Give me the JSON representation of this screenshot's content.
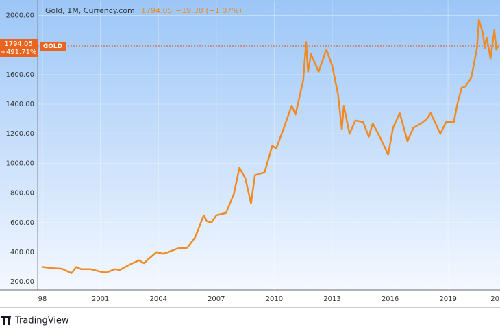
{
  "chart_data": {
    "type": "line",
    "title": "Gold, 1M, Currency.com",
    "last_price": 1794.05,
    "change": "−19.38 (−1.07%)",
    "total_change": "+491.71%",
    "brand": "TradingView",
    "x": [
      1998.0,
      1998.5,
      1999.0,
      1999.5,
      1999.75,
      2000.0,
      2000.5,
      2001.0,
      2001.3,
      2001.75,
      2002.0,
      2002.5,
      2003.0,
      2003.25,
      2003.5,
      2003.9,
      2004.25,
      2004.5,
      2005.0,
      2005.5,
      2005.9,
      2006.35,
      2006.5,
      2006.75,
      2007.0,
      2007.5,
      2007.9,
      2008.2,
      2008.5,
      2008.8,
      2009.0,
      2009.5,
      2009.9,
      2010.1,
      2010.5,
      2010.9,
      2011.1,
      2011.5,
      2011.65,
      2011.75,
      2011.9,
      2012.3,
      2012.7,
      2013.0,
      2013.3,
      2013.5,
      2013.6,
      2013.9,
      2014.2,
      2014.6,
      2014.9,
      2015.1,
      2015.5,
      2015.9,
      2016.15,
      2016.5,
      2016.9,
      2017.2,
      2017.6,
      2017.9,
      2018.1,
      2018.6,
      2018.9,
      2019.3,
      2019.5,
      2019.7,
      2019.9,
      2020.2,
      2020.5,
      2020.6,
      2020.8,
      2020.9,
      2021.0,
      2021.2,
      2021.4,
      2021.5,
      2021.6
    ],
    "series": [
      {
        "name": "GOLD",
        "color": "#f08a24",
        "values": [
          300,
          292,
          288,
          258,
          300,
          285,
          285,
          268,
          262,
          285,
          280,
          315,
          345,
          325,
          355,
          400,
          390,
          400,
          425,
          430,
          500,
          650,
          610,
          600,
          650,
          665,
          790,
          970,
          900,
          730,
          920,
          940,
          1120,
          1100,
          1240,
          1390,
          1330,
          1560,
          1820,
          1620,
          1740,
          1620,
          1770,
          1660,
          1470,
          1230,
          1390,
          1200,
          1290,
          1280,
          1180,
          1270,
          1170,
          1060,
          1240,
          1340,
          1150,
          1240,
          1270,
          1300,
          1340,
          1200,
          1280,
          1280,
          1410,
          1510,
          1520,
          1580,
          1780,
          1970,
          1880,
          1780,
          1850,
          1710,
          1900,
          1770,
          1794.05
        ]
      }
    ],
    "xlim": [
      1997.75,
      2021.62
    ],
    "xticks": [
      {
        "value": 1998,
        "label": "98"
      },
      2001,
      2004,
      2007,
      2010,
      2013,
      2016,
      2019,
      {
        "value": 2022,
        "label": "20"
      }
    ],
    "ylim": [
      145,
      2095
    ],
    "yticks": [
      {
        "value": 200,
        "label": "200.00"
      },
      {
        "value": 400,
        "label": "400.00"
      },
      {
        "value": 600,
        "label": "600.00"
      },
      {
        "value": 800,
        "label": "800.00"
      },
      {
        "value": 1000,
        "label": "1000.00"
      },
      {
        "value": 1200,
        "label": "1200.00"
      },
      {
        "value": 1400,
        "label": "1400.00"
      },
      {
        "value": 1600,
        "label": "1600.00"
      },
      {
        "value": 2000,
        "label": "2000.00"
      }
    ],
    "grid": true
  }
}
